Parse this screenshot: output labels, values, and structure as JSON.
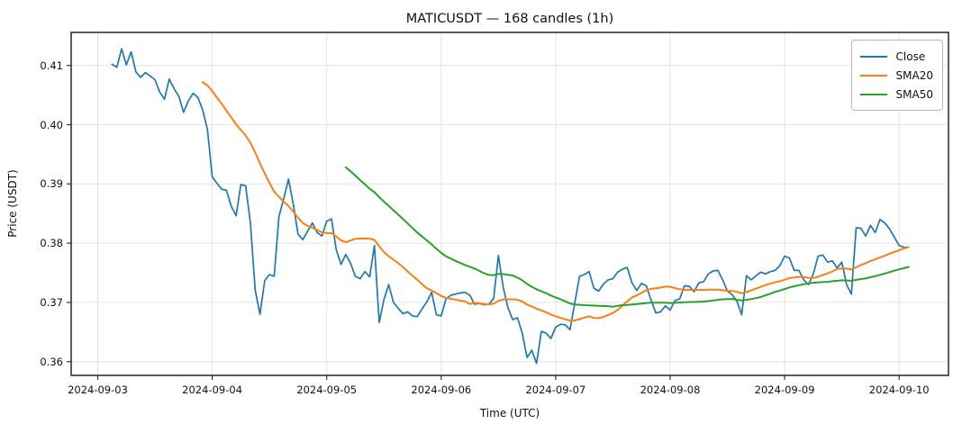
{
  "title": "MATICUSDT — 168 candles (1h)",
  "chart_data": {
    "type": "line",
    "title": "MATICUSDT — 168 candles (1h)",
    "xlabel": "Time (UTC)",
    "ylabel": "Price (USDT)",
    "x_start": "2024-09-03 03:00",
    "x_interval": "1h",
    "n_points": 168,
    "x_ticklabels": [
      "2024-09-03",
      "2024-09-04",
      "2024-09-05",
      "2024-09-06",
      "2024-09-07",
      "2024-09-08",
      "2024-09-09",
      "2024-09-10"
    ],
    "y_ticks": [
      0.36,
      0.37,
      0.38,
      0.39,
      0.4,
      0.41
    ],
    "y_ticklabels": [
      "0.36",
      "0.37",
      "0.38",
      "0.39",
      "0.40",
      "0.41"
    ],
    "ylim": [
      0.3567,
      0.4151
    ],
    "grid": true,
    "grid_color": "#e4e4e4",
    "spine_color": "#333333",
    "legend": {
      "position": "upper right",
      "entries": [
        {
          "label": "Close",
          "color": "#1f77b4"
        },
        {
          "label": "SMA20",
          "color": "#ff7f0e"
        },
        {
          "label": "SMA50",
          "color": "#2ca02c"
        }
      ]
    },
    "series": [
      {
        "name": "Close",
        "color": "#1f77b4",
        "values": [
          0.4102,
          0.4097,
          0.4128,
          0.4101,
          0.4123,
          0.4089,
          0.408,
          0.4088,
          0.4082,
          0.4076,
          0.4055,
          0.4043,
          0.4077,
          0.4061,
          0.4048,
          0.4021,
          0.404,
          0.4053,
          0.4046,
          0.4025,
          0.3992,
          0.3912,
          0.3901,
          0.3891,
          0.3889,
          0.3862,
          0.3846,
          0.3899,
          0.3897,
          0.3834,
          0.3721,
          0.368,
          0.3737,
          0.3747,
          0.3744,
          0.3845,
          0.3875,
          0.3908,
          0.3866,
          0.3815,
          0.3806,
          0.382,
          0.3834,
          0.3818,
          0.3812,
          0.3837,
          0.3841,
          0.3789,
          0.3764,
          0.3781,
          0.3766,
          0.3744,
          0.374,
          0.3752,
          0.3743,
          0.3796,
          0.3666,
          0.3705,
          0.373,
          0.37,
          0.369,
          0.3681,
          0.3684,
          0.3677,
          0.3676,
          0.3689,
          0.3701,
          0.3717,
          0.3679,
          0.3677,
          0.3706,
          0.3712,
          0.3714,
          0.3716,
          0.3717,
          0.3712,
          0.3697,
          0.3698,
          0.3696,
          0.3697,
          0.3707,
          0.3779,
          0.3726,
          0.3691,
          0.3671,
          0.3674,
          0.3648,
          0.3607,
          0.3619,
          0.3597,
          0.3651,
          0.3648,
          0.3639,
          0.3658,
          0.3663,
          0.3662,
          0.3654,
          0.3699,
          0.3744,
          0.3747,
          0.3752,
          0.3724,
          0.3719,
          0.3731,
          0.3738,
          0.374,
          0.3751,
          0.3756,
          0.3759,
          0.3733,
          0.372,
          0.3732,
          0.3728,
          0.3704,
          0.3682,
          0.3684,
          0.3694,
          0.3687,
          0.3703,
          0.3706,
          0.3728,
          0.3727,
          0.3718,
          0.3733,
          0.3735,
          0.3748,
          0.3753,
          0.3754,
          0.3738,
          0.3719,
          0.3713,
          0.3702,
          0.3679,
          0.3745,
          0.3738,
          0.3745,
          0.3751,
          0.3748,
          0.3752,
          0.3754,
          0.3762,
          0.3778,
          0.3775,
          0.3754,
          0.3754,
          0.3738,
          0.373,
          0.3748,
          0.3778,
          0.378,
          0.3768,
          0.377,
          0.3758,
          0.3768,
          0.373,
          0.3714,
          0.3826,
          0.3825,
          0.3812,
          0.383,
          0.3818,
          0.384,
          0.3834,
          0.3824,
          0.381,
          0.3796,
          0.3793,
          0.3793
        ]
      },
      {
        "name": "SMA20",
        "color": "#ff7f0e",
        "derived": "rolling_mean_of_Close_window_20"
      },
      {
        "name": "SMA50",
        "color": "#2ca02c",
        "derived": "rolling_mean_of_Close_window_50"
      }
    ]
  }
}
